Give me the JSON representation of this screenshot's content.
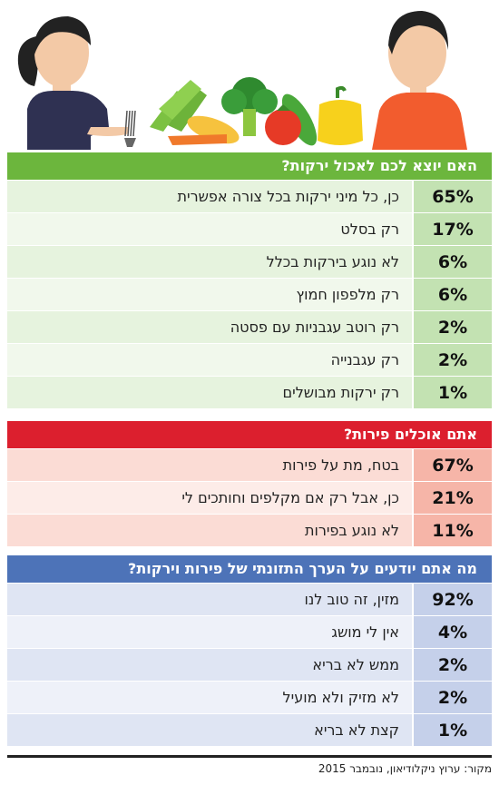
{
  "colors": {
    "green_header": "#6cb63d",
    "green_pct": "#c3e2b2",
    "green_light": "#e6f3de",
    "green_lighter": "#f1f8ec",
    "red_header": "#dc1f2e",
    "red_pct": "#f6b5a8",
    "red_light": "#fbdcd5",
    "red_lighter": "#fdece8",
    "blue_header": "#4d73b8",
    "blue_pct": "#c5d0ea",
    "blue_light": "#dfe5f3",
    "blue_lighter": "#eef1f9"
  },
  "chart_data": [
    {
      "type": "table",
      "title": "האם יוצא לכם לאכול ירקות?",
      "rows": [
        {
          "value": 65,
          "display": "65%",
          "label": "כן, כל מיני ירקות בכל צורה אפשרית"
        },
        {
          "value": 17,
          "display": "17%",
          "label": "רק בסלט"
        },
        {
          "value": 6,
          "display": "6%",
          "label": "לא נוגע בירקות בכלל"
        },
        {
          "value": 6,
          "display": "6%",
          "label": "רק מלפפון חמוץ"
        },
        {
          "value": 2,
          "display": "2%",
          "label": "רק רוטב עגבניות עם פסטה"
        },
        {
          "value": 2,
          "display": "2%",
          "label": "רק עגבנייה"
        },
        {
          "value": 1,
          "display": "1%",
          "label": "רק ירקות מבושלים"
        }
      ]
    },
    {
      "type": "table",
      "title": "אתם אוכלים פירות?",
      "rows": [
        {
          "value": 67,
          "display": "67%",
          "label": "בטח, מת על פירות"
        },
        {
          "value": 21,
          "display": "21%",
          "label": "כן, אבל רק אם מקלפים וחותכים לי"
        },
        {
          "value": 11,
          "display": "11%",
          "label": "לא נוגע בפירות"
        }
      ]
    },
    {
      "type": "table",
      "title": "מה אתם יודעים על הערך התזונתי של פירות וירקות?",
      "rows": [
        {
          "value": 92,
          "display": "92%",
          "label": "מזין, זה טוב לנו"
        },
        {
          "value": 4,
          "display": "4%",
          "label": "אין לי מושג"
        },
        {
          "value": 2,
          "display": "2%",
          "label": "ממש לא בריא"
        },
        {
          "value": 2,
          "display": "2%",
          "label": "לא מזיק ולא מועיל"
        },
        {
          "value": 1,
          "display": "1%",
          "label": "קצת לא בריא"
        }
      ]
    }
  ],
  "source": "מקור: ערוץ ניקלודיאון, נובמבר 2015"
}
